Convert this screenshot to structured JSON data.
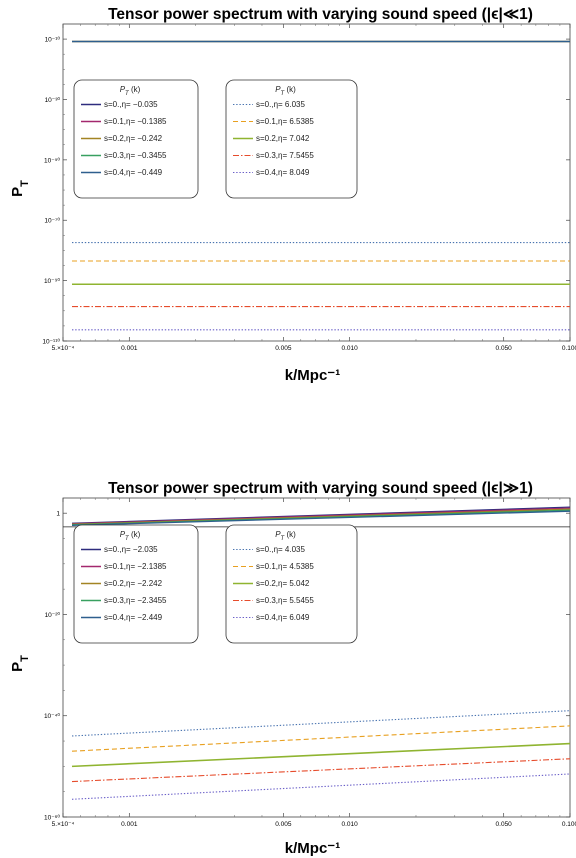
{
  "colors": {
    "solid": [
      "#2e2c7e",
      "#a3286e",
      "#a38423",
      "#38a060",
      "#2e5f8e"
    ],
    "dashed": [
      "#4a74b0",
      "#e8a020",
      "#8fb430",
      "#e64c2c",
      "#6a5fc8"
    ],
    "line_styles": [
      "dotted",
      "dashed",
      "solid",
      "dashdot",
      "dotted"
    ]
  },
  "chart_data": [
    {
      "type": "line",
      "title": "Tensor power spectrum with varying sound speed (|ϵ|≪1)",
      "xlabel": "k/Mpc⁻¹",
      "ylabel": "P_T",
      "x_scale": "log",
      "y_scale": "log",
      "xlim": [
        0.0005,
        0.1
      ],
      "ylim_exponent": [
        -110,
        -5
      ],
      "x_ticks": [
        {
          "v": 0.0005,
          "label": "5.×10⁻⁴"
        },
        {
          "v": 0.001,
          "label": "0.001"
        },
        {
          "v": 0.005,
          "label": "0.005"
        },
        {
          "v": 0.01,
          "label": "0.010"
        },
        {
          "v": 0.05,
          "label": "0.050"
        },
        {
          "v": 0.1,
          "label": "0.100"
        }
      ],
      "y_ticks": [
        {
          "e": -10,
          "label": "10⁻¹⁰"
        },
        {
          "e": -30,
          "label": "10⁻³⁰"
        },
        {
          "e": -50,
          "label": "10⁻⁵⁰"
        },
        {
          "e": -70,
          "label": "10⁻⁷⁰"
        },
        {
          "e": -90,
          "label": "10⁻⁹⁰"
        },
        {
          "e": -110,
          "label": "10⁻¹¹⁰"
        }
      ],
      "x": [
        0.0005,
        0.1
      ],
      "legend_header": "P_T (k)",
      "legend_left": {
        "entries": [
          "s=0.,η= −0.035",
          "s=0.1,η= −0.1385",
          "s=0.2,η= −0.242",
          "s=0.3,η= −0.3455",
          "s=0.4,η= −0.449"
        ]
      },
      "legend_right": {
        "entries": [
          "s=0.,η= 6.035",
          "s=0.1,η= 6.5385",
          "s=0.2,η= 7.042",
          "s=0.3,η= 7.5455",
          "s=0.4,η= 8.049"
        ]
      },
      "series_left_log10": [
        [
          -10.8,
          -10.8
        ],
        [
          -10.8,
          -10.8
        ],
        [
          -10.8,
          -10.8
        ],
        [
          -10.8,
          -10.8
        ],
        [
          -10.8,
          -10.8
        ]
      ],
      "series_right_log10": [
        [
          -77.4,
          -77.4
        ],
        [
          -83.5,
          -83.5
        ],
        [
          -91.2,
          -91.2
        ],
        [
          -98.6,
          -98.6
        ],
        [
          -106.3,
          -106.3
        ]
      ]
    },
    {
      "type": "line",
      "title": "Tensor power spectrum with varying sound speed (|ϵ|≫1)",
      "xlabel": "k/Mpc⁻¹",
      "ylabel": "P_T",
      "x_scale": "log",
      "y_scale": "log",
      "xlim": [
        0.0005,
        0.1
      ],
      "ylim_exponent": [
        -60,
        3
      ],
      "x_ticks": [
        {
          "v": 0.0005,
          "label": "5.×10⁻⁴"
        },
        {
          "v": 0.001,
          "label": "0.001"
        },
        {
          "v": 0.005,
          "label": "0.005"
        },
        {
          "v": 0.01,
          "label": "0.010"
        },
        {
          "v": 0.05,
          "label": "0.050"
        },
        {
          "v": 0.1,
          "label": "0.100"
        }
      ],
      "y_ticks": [
        {
          "e": 0,
          "label": "1"
        },
        {
          "e": -20,
          "label": "10⁻²⁰"
        },
        {
          "e": -40,
          "label": "10⁻⁴⁰"
        },
        {
          "e": -60,
          "label": "10⁻⁶⁰"
        }
      ],
      "x": [
        0.0005,
        0.1
      ],
      "legend_header": "P_T (k)",
      "legend_left": {
        "entries": [
          "s=0.,η= −2.035",
          "s=0.1,η= −2.1385",
          "s=0.2,η= −2.242",
          "s=0.3,η= −2.3455",
          "s=0.4,η= −2.449"
        ]
      },
      "legend_right": {
        "entries": [
          "s=0.,η= 4.035",
          "s=0.1,η= 4.5385",
          "s=0.2,η= 5.042",
          "s=0.3,η= 5.5455",
          "s=0.4,η= 6.049"
        ]
      },
      "series_left_log10": [
        [
          -2.0,
          1.2
        ],
        [
          -2.1,
          1.0
        ],
        [
          -2.2,
          0.8
        ],
        [
          -2.3,
          0.6
        ],
        [
          -2.4,
          0.4
        ]
      ],
      "series_right_log10": [
        [
          -44.0,
          -39.0
        ],
        [
          -47.0,
          -42.0
        ],
        [
          -50.0,
          -45.5
        ],
        [
          -53.0,
          -48.5
        ],
        [
          -56.5,
          -51.5
        ]
      ]
    }
  ]
}
